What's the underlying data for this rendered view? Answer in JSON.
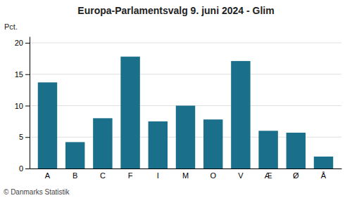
{
  "chart_data": {
    "type": "bar",
    "title": "Europa-Parlamentsvalg 9. juni 2024 - Glim",
    "categories": [
      "A",
      "B",
      "C",
      "F",
      "I",
      "M",
      "O",
      "V",
      "Æ",
      "Ø",
      "Å"
    ],
    "values": [
      13.7,
      4.2,
      8.0,
      17.8,
      7.5,
      10.0,
      7.8,
      17.1,
      6.0,
      5.7,
      1.9
    ],
    "color": "#1a6f8a",
    "ylabel": "Pct.",
    "footer": "© Danmarks Statistik",
    "ylim": [
      0,
      21
    ],
    "yticks": [
      0,
      5,
      10,
      15,
      20
    ],
    "grid": true
  }
}
